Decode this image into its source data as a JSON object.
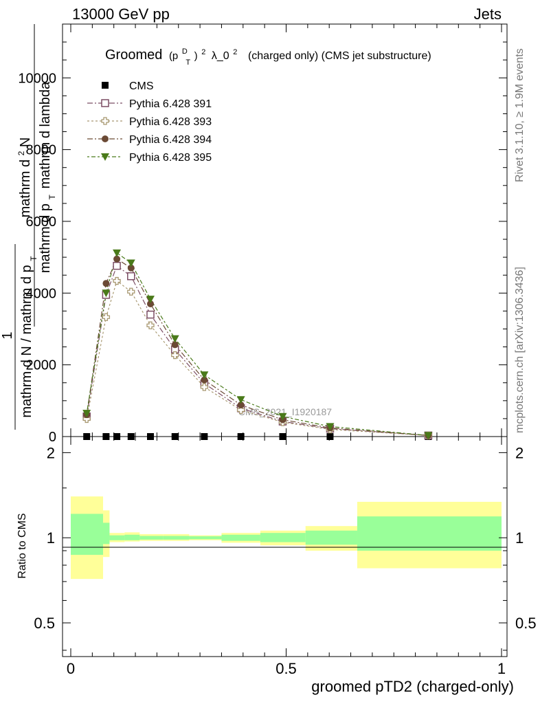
{
  "header": {
    "left": "13000 GeV pp",
    "right": "Jets"
  },
  "side_labels": {
    "rivet": "Rivet 3.1.10, ≥ 1.9M events",
    "mcplots": "mcplots.cern.ch [arXiv:1306.3436]"
  },
  "watermark": "CMS_2021_I1920187",
  "chart_data": {
    "type": "line",
    "title": {
      "prefix": "Groomed",
      "p": "(p",
      "sup_d": "D",
      "sub_t": "T",
      "close": ")",
      "pow2": "2",
      "lambda": "λ_0",
      "pow2b": "2",
      "suffix": "(charged only) (CMS jet substructure)"
    },
    "xlabel": "groomed pTD2 (charged-only)",
    "ylabel": {
      "top_num": "mathrm d",
      "top_sup": "2",
      "top_n": "N",
      "top_den": "mathrm d p",
      "top_den_sub": "T",
      "top_den_rest": "mathrm d lambda",
      "frac_num": "1",
      "frac_den": "mathrm d N / mathrm d p",
      "frac_den_sub": "T"
    },
    "ratio_ylabel": "Ratio to CMS",
    "xlim": [
      0,
      1
    ],
    "ylim": [
      0,
      11500
    ],
    "ratio_ylim": [
      0.38,
      2.28
    ],
    "xticks": [
      "0",
      "0.5",
      "1"
    ],
    "xtick_values": [
      0,
      0.5,
      1
    ],
    "yticks": [
      "0",
      "2000",
      "4000",
      "6000",
      "8000",
      "10000"
    ],
    "ytick_values": [
      0,
      2000,
      4000,
      6000,
      8000,
      10000
    ],
    "ratio_yticks": [
      "0.5",
      "1",
      "2"
    ],
    "ratio_ytick_values": [
      0.5,
      1,
      2
    ],
    "x": [
      0.037,
      0.082,
      0.107,
      0.14,
      0.185,
      0.242,
      0.31,
      0.395,
      0.492,
      0.602,
      0.83
    ],
    "bin_edges": [
      0,
      0.075,
      0.09,
      0.125,
      0.16,
      0.215,
      0.275,
      0.35,
      0.44,
      0.545,
      0.665,
      1.0
    ],
    "series": [
      {
        "name": "CMS",
        "color": "#000000",
        "marker": "filled-square",
        "dash": "",
        "values": [
          0,
          0,
          0,
          0,
          0,
          0,
          0,
          0,
          0,
          0,
          0
        ]
      },
      {
        "name": "Pythia 6.428 391",
        "color": "#7b4d63",
        "marker": "open-square",
        "dash": "8,3,2,3",
        "values": [
          560,
          3950,
          4760,
          4470,
          3400,
          2430,
          1480,
          790,
          420,
          220,
          30
        ]
      },
      {
        "name": "Pythia 6.428 393",
        "color": "#a89870",
        "marker": "open-cross",
        "dash": "3,3",
        "values": [
          490,
          3330,
          4340,
          4040,
          3100,
          2270,
          1380,
          740,
          400,
          200,
          30
        ]
      },
      {
        "name": "Pythia 6.428 394",
        "color": "#6b4a35",
        "marker": "filled-circle",
        "dash": "8,3,2,3",
        "values": [
          610,
          4270,
          4950,
          4700,
          3700,
          2560,
          1580,
          880,
          470,
          240,
          30
        ]
      },
      {
        "name": "Pythia 6.428 395",
        "color": "#4a7a1a",
        "marker": "filled-triangle-down",
        "dash": "3,3,6,3",
        "values": [
          650,
          4000,
          5120,
          4840,
          3830,
          2730,
          1720,
          1030,
          560,
          280,
          30
        ]
      }
    ],
    "ratio_band_yellow": [
      [
        0.715,
        1.4
      ],
      [
        0.855,
        1.25
      ],
      [
        0.965,
        1.04
      ],
      [
        0.97,
        1.045
      ],
      [
        0.975,
        1.03
      ],
      [
        0.975,
        1.03
      ],
      [
        0.98,
        1.02
      ],
      [
        0.96,
        1.04
      ],
      [
        0.94,
        1.06
      ],
      [
        0.9,
        1.1
      ],
      [
        0.78,
        1.34
      ]
    ],
    "ratio_band_green": [
      [
        0.87,
        1.215
      ],
      [
        0.95,
        1.13
      ],
      [
        0.98,
        1.02
      ],
      [
        0.98,
        1.025
      ],
      [
        0.985,
        1.015
      ],
      [
        0.985,
        1.015
      ],
      [
        0.988,
        1.012
      ],
      [
        0.975,
        1.025
      ],
      [
        0.965,
        1.04
      ],
      [
        0.945,
        1.06
      ],
      [
        0.9,
        1.19
      ]
    ],
    "colors": {
      "yellow": "#ffff99",
      "green": "#99ff99"
    },
    "legend_position": "top-left"
  }
}
